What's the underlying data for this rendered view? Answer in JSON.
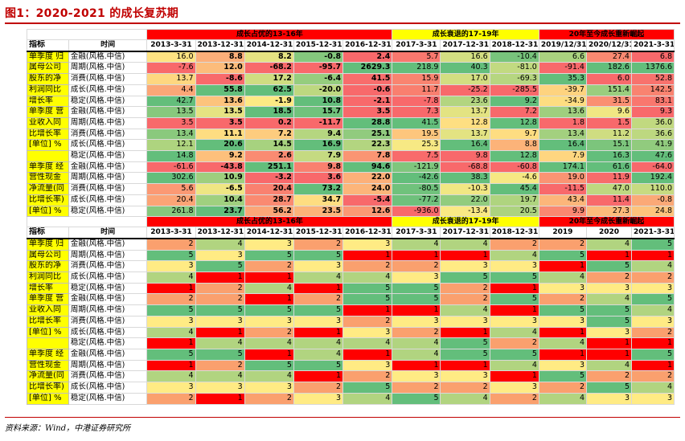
{
  "title": "图1：2020-2021 的成长复苏期",
  "source": "资料来源：Wind，中港证券研究所",
  "colors": {
    "red": "#ff0000",
    "yellow": "#ffff00",
    "green": "#63be7b",
    "amber": "#ffeb84"
  },
  "top": {
    "groups": [
      "成长占优的13-16年",
      "成长衰退的17-19年",
      "20年至今成长重新崛起"
    ],
    "col_headers": [
      "指标",
      "时间",
      "2013-3-31",
      "2013-12-31",
      "2014-12-31",
      "2015-12-31",
      "2016-12-31",
      "2017-3-31",
      "2017-12-31",
      "2018-12-31",
      "2019/12/31",
      "2020/12/31",
      "2021-3-31"
    ],
    "blocks": [
      {
        "labels": [
          "单季度 归",
          "属母公司",
          "股东的净",
          "利润同比",
          "增长率"
        ],
        "rows": [
          {
            "cat": "金融(风格.中信)",
            "vals": [
              "16.0",
              "8.8",
              "8.2",
              "-0.8",
              "2.4",
              "5.7",
              "16.6",
              "-10.4",
              "6.6",
              "27.4",
              "6.8"
            ]
          },
          {
            "cat": "周期(风格.中信)",
            "vals": [
              "-7.6",
              "12.0",
              "-68.2",
              "-95.7",
              "2629.3",
              "218.9",
              "40.3",
              "-81.0",
              "-91.4",
              "182.6",
              "1376.6"
            ]
          },
          {
            "cat": "消费(风格.中信)",
            "vals": [
              "13.7",
              "-8.6",
              "17.2",
              "-6.4",
              "41.5",
              "15.9",
              "17.0",
              "-69.3",
              "35.3",
              "6.0",
              "52.8"
            ]
          },
          {
            "cat": "成长(风格.中信)",
            "vals": [
              "4.4",
              "55.8",
              "62.5",
              "-20.0",
              "-0.6",
              "11.7",
              "-25.2",
              "-285.5",
              "-39.7",
              "151.4",
              "142.5"
            ]
          },
          {
            "cat": "稳定(风格.中信)",
            "vals": [
              "42.7",
              "13.6",
              "-1.9",
              "10.8",
              "-2.1",
              "-7.8",
              "23.6",
              "9.2",
              "-34.9",
              "31.5",
              "83.1"
            ]
          }
        ]
      },
      {
        "labels": [
          "单季度 营",
          "业收入同",
          "比增长率",
          "[单位] %",
          ""
        ],
        "rows": [
          {
            "cat": "金融(风格.中信)",
            "vals": [
              "13.5",
              "13.5",
              "18.5",
              "15.7",
              "3.5",
              "7.3",
              "13.7",
              "7.2",
              "13.6",
              "9.6",
              "9.3"
            ]
          },
          {
            "cat": "周期(风格.中信)",
            "vals": [
              "3.5",
              "3.5",
              "0.2",
              "-11.7",
              "28.8",
              "41.5",
              "12.8",
              "12.8",
              "1.8",
              "1.5",
              "36.0"
            ]
          },
          {
            "cat": "消费(风格.中信)",
            "vals": [
              "13.4",
              "11.1",
              "7.2",
              "9.4",
              "25.1",
              "19.5",
              "13.7",
              "9.7",
              "13.4",
              "11.2",
              "36.6"
            ]
          },
          {
            "cat": "成长(风格.中信)",
            "vals": [
              "12.1",
              "20.6",
              "14.5",
              "16.9",
              "22.3",
              "25.3",
              "16.4",
              "8.8",
              "16.4",
              "15.1",
              "41.9"
            ]
          },
          {
            "cat": "稳定(风格.中信)",
            "vals": [
              "14.8",
              "9.2",
              "2.6",
              "7.9",
              "7.8",
              "7.5",
              "9.8",
              "12.8",
              "7.9",
              "16.3",
              "47.6"
            ]
          }
        ]
      },
      {
        "labels": [
          "单季度 经",
          "营性现金",
          "净流量(同",
          "比增长率)",
          "[单位] %"
        ],
        "rows": [
          {
            "cat": "金融(风格.中信)",
            "vals": [
              "-61.6",
              "-43.8",
              "251.1",
              "9.8",
              "94.6",
              "-121.9",
              "-68.8",
              "-60.8",
              "174.1",
              "61.6",
              "-64.0"
            ]
          },
          {
            "cat": "周期(风格.中信)",
            "vals": [
              "302.6",
              "10.9",
              "-3.2",
              "3.6",
              "22.0",
              "-42.6",
              "38.3",
              "-4.6",
              "19.0",
              "11.9",
              "192.4"
            ]
          },
          {
            "cat": "消费(风格.中信)",
            "vals": [
              "5.6",
              "-6.5",
              "20.4",
              "73.2",
              "24.0",
              "-80.5",
              "-10.3",
              "45.4",
              "-11.5",
              "47.0",
              "110.0"
            ]
          },
          {
            "cat": "成长(风格.中信)",
            "vals": [
              "20.4",
              "10.4",
              "28.7",
              "34.7",
              "-5.4",
              "-77.2",
              "22.0",
              "19.7",
              "43.4",
              "11.4",
              "-0.8"
            ]
          },
          {
            "cat": "稳定(风格.中信)",
            "vals": [
              "261.8",
              "23.7",
              "56.2",
              "23.5",
              "12.6",
              "-936.0",
              "-13.4",
              "20.5",
              "9.9",
              "27.3",
              "24.8"
            ]
          }
        ]
      }
    ]
  },
  "bottom": {
    "groups": [
      "成长占优的13-16年",
      "成长衰退的17-19年",
      "20年至今成长重新崛起"
    ],
    "col_headers": [
      "指标",
      "时间",
      "2013-3-31",
      "2013-12-31",
      "2014-12-31",
      "2015-12-31",
      "2016-12-31",
      "2017-3-31",
      "2017-12-31",
      "2018-12-31",
      "2019",
      "2020",
      "2021-3-31"
    ],
    "blocks": [
      {
        "labels": [
          "单季度 归",
          "属母公司",
          "股东的净",
          "利润同比",
          "增长率"
        ],
        "rows": [
          {
            "cat": "金融(风格.中信)",
            "vals": [
              "2",
              "4",
              "3",
              "2",
              "3",
              "4",
              "4",
              "2",
              "2",
              "4",
              "5"
            ]
          },
          {
            "cat": "周期(风格.中信)",
            "vals": [
              "5",
              "3",
              "5",
              "5",
              "1",
              "1",
              "1",
              "4",
              "5",
              "1",
              "1"
            ]
          },
          {
            "cat": "消费(风格.中信)",
            "vals": [
              "3",
              "5",
              "2",
              "3",
              "2",
              "2",
              "3",
              "3",
              "1",
              "5",
              "4"
            ]
          },
          {
            "cat": "成长(风格.中信)",
            "vals": [
              "4",
              "1",
              "1",
              "4",
              "4",
              "3",
              "5",
              "5",
              "4",
              "2",
              "2"
            ]
          },
          {
            "cat": "稳定(风格.中信)",
            "vals": [
              "1",
              "2",
              "4",
              "1",
              "5",
              "5",
              "2",
              "1",
              "3",
              "3",
              "3"
            ]
          }
        ]
      },
      {
        "labels": [
          "单季度 营",
          "业收入同",
          "比增长率",
          "[单位] %",
          ""
        ],
        "rows": [
          {
            "cat": "金融(风格.中信)",
            "vals": [
              "2",
              "2",
              "1",
              "2",
              "5",
              "5",
              "2",
              "5",
              "2",
              "4",
              "5"
            ]
          },
          {
            "cat": "周期(风格.中信)",
            "vals": [
              "5",
              "5",
              "5",
              "5",
              "1",
              "1",
              "4",
              "1",
              "5",
              "5",
              "4"
            ]
          },
          {
            "cat": "消费(风格.中信)",
            "vals": [
              "3",
              "3",
              "3",
              "3",
              "2",
              "3",
              "3",
              "3",
              "3",
              "5",
              "3"
            ]
          },
          {
            "cat": "成长(风格.中信)",
            "vals": [
              "4",
              "1",
              "2",
              "1",
              "3",
              "2",
              "1",
              "4",
              "1",
              "3",
              "2"
            ]
          },
          {
            "cat": "稳定(风格.中信)",
            "vals": [
              "1",
              "4",
              "4",
              "4",
              "4",
              "4",
              "5",
              "2",
              "4",
              "1",
              "1"
            ]
          }
        ]
      },
      {
        "labels": [
          "单季度 经",
          "营性现金",
          "净流量(同",
          "比增长率)",
          "[单位] %"
        ],
        "rows": [
          {
            "cat": "金融(风格.中信)",
            "vals": [
              "5",
              "5",
              "1",
              "4",
              "1",
              "4",
              "5",
              "5",
              "1",
              "1",
              "5"
            ]
          },
          {
            "cat": "周期(风格.中信)",
            "vals": [
              "1",
              "2",
              "5",
              "5",
              "3",
              "1",
              "1",
              "4",
              "3",
              "4",
              "1"
            ]
          },
          {
            "cat": "消费(风格.中信)",
            "vals": [
              "4",
              "4",
              "4",
              "1",
              "2",
              "3",
              "3",
              "1",
              "5",
              "2",
              "2"
            ]
          },
          {
            "cat": "成长(风格.中信)",
            "vals": [
              "3",
              "3",
              "3",
              "2",
              "5",
              "2",
              "2",
              "3",
              "2",
              "5",
              "4"
            ]
          },
          {
            "cat": "稳定(风格.中信)",
            "vals": [
              "2",
              "1",
              "2",
              "3",
              "4",
              "5",
              "4",
              "2",
              "4",
              "3",
              "3"
            ]
          }
        ]
      }
    ]
  }
}
